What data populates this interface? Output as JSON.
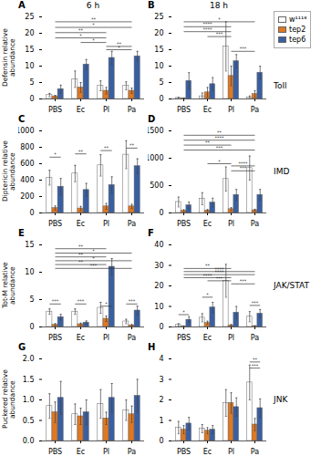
{
  "chart_data": [
    {
      "type": "bar",
      "panel_label": "A",
      "title": "6 h",
      "ylabel": "Defensin relative abundance",
      "categories": [
        "PBS",
        "Ec",
        "Pl",
        "Pa"
      ],
      "series": [
        {
          "name": "w¹¹¹⁸",
          "color": "#ffffff",
          "values": [
            1.2,
            6.0,
            4.0,
            4.0
          ],
          "errors": [
            0.5,
            2.5,
            1.5,
            1.2
          ]
        },
        {
          "name": "tep2",
          "color": "#e07820",
          "values": [
            0.8,
            3.5,
            2.5,
            2.5
          ],
          "errors": [
            0.3,
            1.5,
            1.0,
            0.8
          ]
        },
        {
          "name": "tep6",
          "color": "#3a5fa0",
          "values": [
            3.0,
            10.5,
            12.5,
            13.0
          ],
          "errors": [
            1.2,
            1.5,
            2.0,
            1.5
          ]
        }
      ],
      "ylim": [
        0,
        25
      ],
      "yticks": [
        0,
        5,
        10,
        15,
        20,
        25
      ],
      "annotations": [
        {
          "text": "**",
          "x1": "PBS",
          "x2": "Pa",
          "y": 23.5
        },
        {
          "text": "*",
          "x1": "PBS",
          "x2": "Pa",
          "y": 21.8
        },
        {
          "text": "**",
          "x1": "PBS",
          "x2": "Pl",
          "y": 20.2
        },
        {
          "text": "*",
          "x1": "PBS",
          "x2": "Pl",
          "y": 18.6
        },
        {
          "text": "*",
          "x1": "Ec",
          "x2": "Pl",
          "y": 17.2
        },
        {
          "text": "**",
          "x1": "Pl",
          "x2": "Pa",
          "y": 16.0
        },
        {
          "text": "*",
          "x1": "Pl",
          "x2": "Pa",
          "y": 15.0
        }
      ]
    },
    {
      "type": "bar",
      "panel_label": "B",
      "title": "18 h",
      "side_label": "Toll",
      "legend": "right",
      "categories": [
        "PBS",
        "Ec",
        "Pl",
        "Pa"
      ],
      "series": [
        {
          "name": "w¹¹¹⁸",
          "color": "#ffffff",
          "values": [
            0.3,
            0.8,
            16.0,
            0.5
          ],
          "errors": [
            0.2,
            1.0,
            7.5,
            0.4
          ]
        },
        {
          "name": "tep2",
          "color": "#e07820",
          "values": [
            0.2,
            2.0,
            7.0,
            1.5
          ],
          "errors": [
            0.1,
            1.5,
            3.0,
            1.0
          ]
        },
        {
          "name": "tep6",
          "color": "#3a5fa0",
          "values": [
            5.5,
            4.5,
            11.5,
            8.0
          ],
          "errors": [
            2.5,
            2.0,
            2.0,
            2.0
          ]
        }
      ],
      "ylim": [
        0,
        25
      ],
      "yticks": [
        0,
        5,
        10,
        15,
        20,
        25
      ],
      "annotations": [
        {
          "text": "*",
          "x1": "PBS",
          "x2": "Pa",
          "y": 23.5
        },
        {
          "text": "****",
          "x1": "PBS",
          "x2": "Pl",
          "y": 22.0
        },
        {
          "text": "****",
          "x1": "PBS",
          "x2": "Pl",
          "y": 20.5
        },
        {
          "text": "***",
          "x1": "Ec",
          "x2": "Pl",
          "y": 19.0
        },
        {
          "text": "***",
          "x1": "Pl",
          "x2": "Pa",
          "y": 14.5
        }
      ]
    },
    {
      "type": "bar",
      "panel_label": "C",
      "ylabel": "Diptericin relative abundance",
      "categories": [
        "PBS",
        "Ec",
        "Pl",
        "Pa"
      ],
      "series": [
        {
          "name": "w¹¹¹⁸",
          "color": "#ffffff",
          "values": [
            430,
            480,
            580,
            710
          ],
          "errors": [
            90,
            100,
            130,
            170
          ]
        },
        {
          "name": "tep2",
          "color": "#e07820",
          "values": [
            60,
            55,
            80,
            80
          ],
          "errors": [
            25,
            25,
            35,
            25
          ]
        },
        {
          "name": "tep6",
          "color": "#3a5fa0",
          "values": [
            320,
            280,
            340,
            570
          ],
          "errors": [
            100,
            80,
            100,
            90
          ]
        }
      ],
      "ylim": [
        0,
        1000
      ],
      "yticks": [
        0,
        200,
        400,
        600,
        800,
        1000
      ],
      "annotations": [
        {
          "text": "*",
          "x1": "PBS",
          "x2": "PBS",
          "y": 680
        },
        {
          "text": "**",
          "x1": "Ec",
          "x2": "Ec",
          "y": 720
        },
        {
          "text": "**",
          "x1": "Pl",
          "x2": "Pl",
          "y": 760
        },
        {
          "text": "**",
          "x1": "Pa",
          "x2": "Pa",
          "y": 790
        }
      ]
    },
    {
      "type": "bar",
      "panel_label": "D",
      "side_label": "IMD",
      "categories": [
        "PBS",
        "Ec",
        "Pl",
        "Pa"
      ],
      "series": [
        {
          "name": "w¹¹¹⁸",
          "color": "#ffffff",
          "values": [
            200,
            260,
            620,
            820
          ],
          "errors": [
            90,
            110,
            220,
            220
          ]
        },
        {
          "name": "tep2",
          "color": "#e07820",
          "values": [
            40,
            45,
            70,
            50
          ],
          "errors": [
            18,
            18,
            28,
            18
          ]
        },
        {
          "name": "tep6",
          "color": "#3a5fa0",
          "values": [
            140,
            190,
            330,
            330
          ],
          "errors": [
            60,
            80,
            100,
            100
          ]
        }
      ],
      "ylim": [
        0,
        1500
      ],
      "yticks": [
        0,
        500,
        1000,
        1500
      ],
      "annotations": [
        {
          "text": "**",
          "x1": "PBS",
          "x2": "Pa",
          "y": 1420
        },
        {
          "text": "****",
          "x1": "PBS",
          "x2": "Pa",
          "y": 1330
        },
        {
          "text": "**",
          "x1": "PBS",
          "x2": "Pl",
          "y": 1240
        },
        {
          "text": "***",
          "x1": "PBS",
          "x2": "Pa",
          "y": 1150
        },
        {
          "text": "*",
          "x1": "Ec",
          "x2": "Pl",
          "y": 900
        },
        {
          "text": "****",
          "x1": "Pl",
          "x2": "Pa",
          "y": 860
        },
        {
          "text": "***",
          "x1": "Pl",
          "x2": "Pa",
          "y": 770
        }
      ]
    },
    {
      "type": "bar",
      "panel_label": "E",
      "ylabel": "Tot-M relative abundance",
      "categories": [
        "PBS",
        "Ec",
        "Pl",
        "Pa"
      ],
      "series": [
        {
          "name": "w¹¹¹⁸",
          "color": "#ffffff",
          "values": [
            2.8,
            2.8,
            3.5,
            1.0
          ],
          "errors": [
            0.5,
            0.5,
            1.0,
            0.4
          ]
        },
        {
          "name": "tep2",
          "color": "#e07820",
          "values": [
            0.4,
            0.5,
            1.5,
            0.3
          ],
          "errors": [
            0.2,
            0.2,
            0.5,
            0.15
          ]
        },
        {
          "name": "tep6",
          "color": "#3a5fa0",
          "values": [
            1.8,
            0.8,
            11.0,
            3.0
          ],
          "errors": [
            0.5,
            0.3,
            1.5,
            0.8
          ]
        }
      ],
      "ylim": [
        0,
        15
      ],
      "yticks": [
        0,
        5,
        10,
        15
      ],
      "annotations": [
        {
          "text": "**",
          "x1": "PBS",
          "x2": "Pl",
          "y": 14.3
        },
        {
          "text": "*",
          "x1": "PBS",
          "x2": "Pa",
          "y": 13.5
        },
        {
          "text": "**",
          "x1": "PBS",
          "x2": "Pl",
          "y": 12.8
        },
        {
          "text": "*",
          "x1": "PBS",
          "x2": "Pa",
          "y": 12.1
        },
        {
          "text": "**",
          "x1": "PBS",
          "x2": "Pl",
          "y": 11.4
        },
        {
          "text": "***",
          "x1": "PBS",
          "x2": "Pa",
          "y": 10.7
        },
        {
          "text": "***",
          "x1": "PBS",
          "x2": "PBS",
          "y": 4.2
        },
        {
          "text": "***",
          "x1": "Ec",
          "x2": "Ec",
          "y": 4.2
        },
        {
          "text": "*",
          "x1": "Pl",
          "x2": "Pl",
          "y": 3.8
        },
        {
          "text": "***",
          "x1": "Pa",
          "x2": "Pa",
          "y": 4.2
        }
      ]
    },
    {
      "type": "bar",
      "panel_label": "F",
      "side_label": "JAK/STAT",
      "categories": [
        "PBS",
        "Ec",
        "Pl",
        "Pa"
      ],
      "series": [
        {
          "name": "w¹¹¹⁸",
          "color": "#ffffff",
          "values": [
            1.0,
            4.5,
            22.5,
            5.0
          ],
          "errors": [
            0.6,
            2.0,
            8.0,
            2.5
          ]
        },
        {
          "name": "tep2",
          "color": "#e07820",
          "values": [
            0.3,
            2.0,
            0.8,
            0.4
          ],
          "errors": [
            0.2,
            0.8,
            0.4,
            0.2
          ]
        },
        {
          "name": "tep6",
          "color": "#3a5fa0",
          "values": [
            3.5,
            9.5,
            7.0,
            6.5
          ],
          "errors": [
            1.5,
            2.5,
            3.0,
            2.0
          ]
        }
      ],
      "ylim": [
        0,
        40
      ],
      "yticks": [
        0,
        10,
        20,
        30,
        40
      ],
      "annotations": [
        {
          "text": "**",
          "x1": "PBS",
          "x2": "Pl",
          "y": 28.5
        },
        {
          "text": "****",
          "x1": "PBS",
          "x2": "Pa",
          "y": 27.0
        },
        {
          "text": "****",
          "x1": "PBS",
          "x2": "Pa",
          "y": 25.5
        },
        {
          "text": "****",
          "x1": "PBS",
          "x2": "Pl",
          "y": 24.0
        },
        {
          "text": "***",
          "x1": "Ec",
          "x2": "Pl",
          "y": 22.5
        },
        {
          "text": "***",
          "x1": "Pl",
          "x2": "Pa",
          "y": 21.0
        },
        {
          "text": "*",
          "x1": "PBS",
          "x2": "PBS",
          "y": 6.0
        },
        {
          "text": "*",
          "x1": "Ec",
          "x2": "Ec",
          "y": 14.5
        },
        {
          "text": "***",
          "x1": "Pa",
          "x2": "Pa",
          "y": 10.5
        }
      ]
    },
    {
      "type": "bar",
      "panel_label": "G",
      "ylabel": "Puckered relative abundance",
      "categories": [
        "PBS",
        "Ec",
        "Pl",
        "Pa"
      ],
      "series": [
        {
          "name": "w¹¹¹⁸",
          "color": "#ffffff",
          "values": [
            0.85,
            0.65,
            0.9,
            0.75
          ],
          "errors": [
            0.3,
            0.25,
            0.35,
            0.25
          ]
        },
        {
          "name": "tep2",
          "color": "#e07820",
          "values": [
            0.7,
            0.6,
            0.55,
            0.65
          ],
          "errors": [
            0.25,
            0.2,
            0.15,
            0.2
          ]
        },
        {
          "name": "tep6",
          "color": "#3a5fa0",
          "values": [
            1.05,
            0.7,
            1.05,
            1.1
          ],
          "errors": [
            0.4,
            0.3,
            0.35,
            0.4
          ]
        }
      ],
      "ylim": [
        0,
        2.0
      ],
      "yticks": [
        {
          "value": 0,
          "label": "0.0"
        },
        {
          "value": 0.5,
          "label": "0.5"
        },
        {
          "value": 1.0,
          "label": "1.0"
        },
        {
          "value": 1.5,
          "label": "1.5"
        },
        {
          "value": 2.0,
          "label": "2.0"
        }
      ],
      "annotations": []
    },
    {
      "type": "bar",
      "panel_label": "H",
      "side_label": "JNK",
      "categories": [
        "PBS",
        "Ec",
        "Pl",
        "Pa"
      ],
      "series": [
        {
          "name": "w¹¹¹⁸",
          "color": "#ffffff",
          "values": [
            0.65,
            0.6,
            1.85,
            2.85
          ],
          "errors": [
            0.3,
            0.2,
            0.65,
            0.85
          ]
        },
        {
          "name": "tep2",
          "color": "#e07820",
          "values": [
            0.55,
            0.5,
            1.85,
            0.8
          ],
          "errors": [
            0.2,
            0.15,
            0.5,
            0.3
          ]
        },
        {
          "name": "tep6",
          "color": "#3a5fa0",
          "values": [
            0.85,
            0.55,
            1.65,
            1.6
          ],
          "errors": [
            0.3,
            0.2,
            0.45,
            0.45
          ]
        }
      ],
      "ylim": [
        0,
        4
      ],
      "yticks": [
        0,
        1,
        2,
        3,
        4
      ],
      "annotations": [
        {
          "text": "**",
          "x1": "Pa",
          "x2": "Pa",
          "y": 3.85
        },
        {
          "text": "***",
          "x1": "Pa",
          "x2": "Pa",
          "y": 3.55
        }
      ]
    }
  ]
}
